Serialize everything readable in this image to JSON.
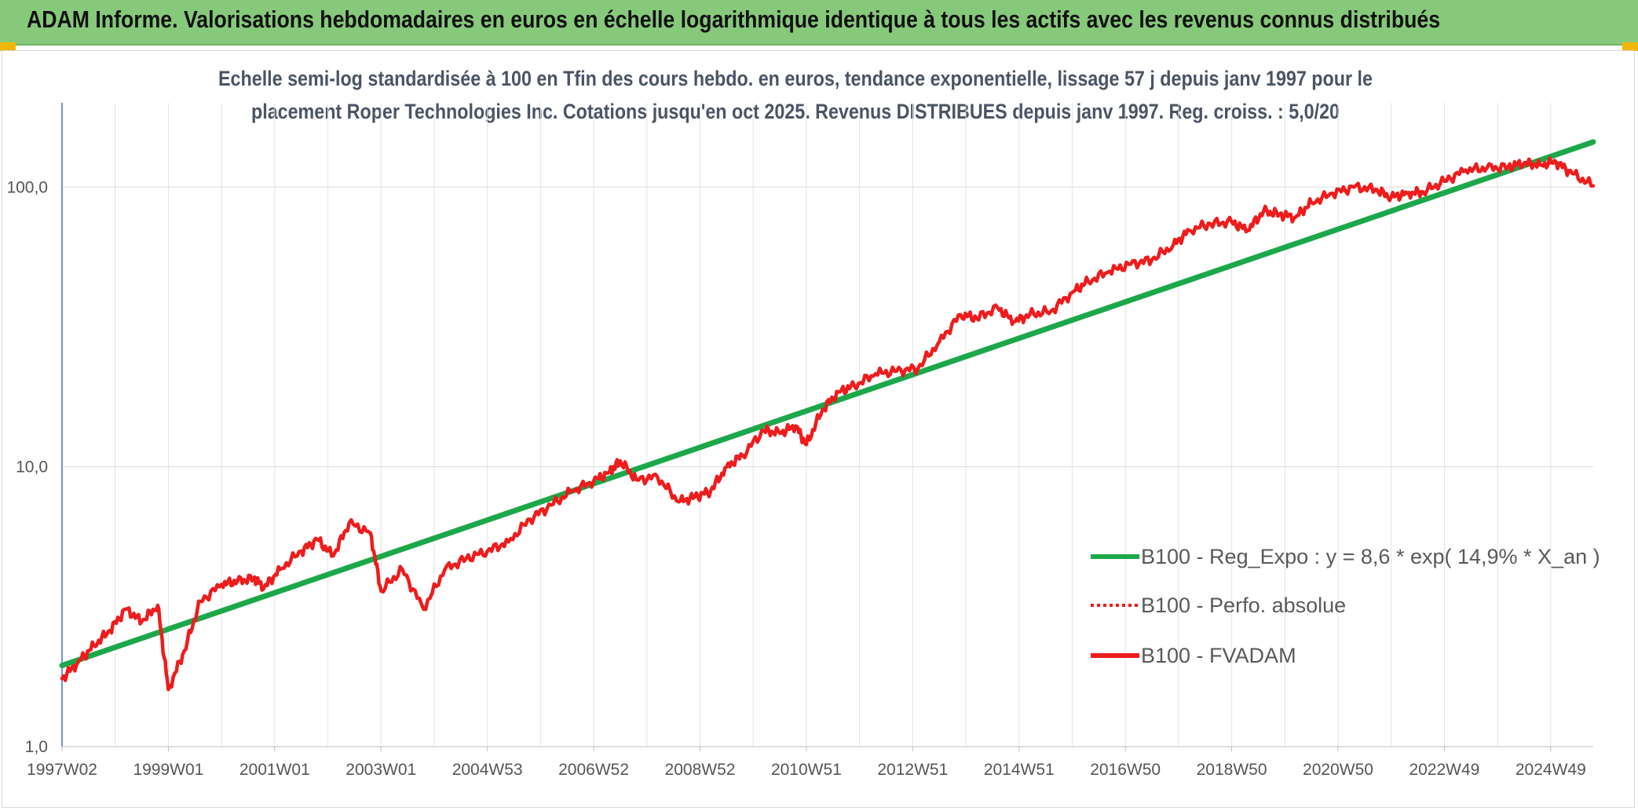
{
  "header": {
    "title": "ADAM Informe. Valorisations hebdomadaires en euros en échelle logarithmique identique à tous les actifs avec les revenus connus distribués"
  },
  "colors": {
    "banner": "#86c97a",
    "accent_tab": "#f2b705",
    "trend": "#1ca84a",
    "series": "#ee1c1c"
  },
  "chart_data": {
    "type": "line",
    "title_lines": [
      "Echelle semi-log standardisée à 100 en Tfin des cours hebdo. en euros, tendance exponentielle, lissage 57 j depuis janv 1997 pour le",
      "placement Roper Technologies Inc. Cotations jusqu'en oct 2025. Revenus DISTRIBUES depuis janv 1997. Reg. croiss. : 5,0/20"
    ],
    "y_scale": "log",
    "ylim": [
      1,
      200
    ],
    "y_tick_values": [
      1,
      10,
      100
    ],
    "y_tick_labels": [
      "1,0",
      "10,0",
      "100,0"
    ],
    "xlim": [
      1997.0,
      2025.8
    ],
    "x_tick_values": [
      1997.0,
      1999.0,
      2001.0,
      2003.0,
      2005.0,
      2007.0,
      2009.0,
      2011.0,
      2013.0,
      2015.0,
      2017.0,
      2019.0,
      2021.0,
      2023.0,
      2025.0
    ],
    "x_tick_labels": [
      "1997W02",
      "1999W01",
      "2001W01",
      "2003W01",
      "2004W53",
      "2006W52",
      "2008W52",
      "2010W51",
      "2012W51",
      "2014W51",
      "2016W50",
      "2018W50",
      "2020W50",
      "2022W49",
      "2024W49"
    ],
    "legend": [
      {
        "label": "B100 - Reg_Expo : y = 8,6 * exp( 14,9% *  X_an )",
        "style": "solid",
        "color": "#1ca84a"
      },
      {
        "label": "B100 - Perfo. absolue",
        "style": "dotted",
        "color": "#ee1c1c"
      },
      {
        "label": "B100 - FVADAM",
        "style": "solid",
        "color": "#ee1c1c"
      }
    ],
    "series": [
      {
        "name": "B100 - Reg_Expo",
        "x": [
          1997.0,
          2025.8
        ],
        "y": [
          1.95,
          145
        ]
      },
      {
        "name": "B100 - FVADAM",
        "x": [
          1997.0,
          1997.3,
          1997.6,
          1997.9,
          1998.2,
          1998.5,
          1998.8,
          1999.0,
          1999.3,
          1999.6,
          2000.0,
          2000.3,
          2000.6,
          2000.8,
          2001.1,
          2001.5,
          2001.8,
          2002.1,
          2002.4,
          2002.8,
          2003.0,
          2003.4,
          2003.8,
          2004.2,
          2004.6,
          2005.0,
          2005.4,
          2005.8,
          2006.2,
          2006.6,
          2007.0,
          2007.3,
          2007.5,
          2007.8,
          2008.2,
          2008.6,
          2008.9,
          2009.2,
          2009.5,
          2009.8,
          2010.2,
          2010.5,
          2010.8,
          2011.0,
          2011.3,
          2011.6,
          2011.9,
          2012.3,
          2012.7,
          2013.1,
          2013.5,
          2013.9,
          2014.2,
          2014.6,
          2014.9,
          2015.2,
          2015.6,
          2016.0,
          2016.3,
          2016.7,
          2017.1,
          2017.5,
          2017.9,
          2018.2,
          2018.6,
          2019.0,
          2019.3,
          2019.6,
          2019.9,
          2020.2,
          2020.5,
          2020.9,
          2021.3,
          2021.7,
          2022.0,
          2022.3,
          2022.6,
          2023.0,
          2023.4,
          2023.8,
          2024.2,
          2024.5,
          2024.8,
          2025.1,
          2025.4,
          2025.8
        ],
        "y": [
          1.75,
          2.0,
          2.3,
          2.6,
          3.1,
          2.8,
          3.2,
          1.6,
          2.2,
          3.3,
          3.8,
          3.9,
          4.0,
          3.7,
          4.3,
          5.0,
          5.5,
          4.8,
          6.3,
          5.8,
          3.6,
          4.3,
          3.1,
          4.3,
          4.7,
          5.0,
          5.4,
          6.5,
          7.3,
          8.2,
          8.9,
          9.6,
          10.5,
          9.0,
          9.2,
          7.5,
          7.8,
          8.2,
          10.0,
          11.0,
          13.5,
          13.2,
          14.0,
          12.0,
          16.0,
          18.5,
          19.5,
          21.5,
          22.0,
          22.5,
          28.0,
          35.0,
          34.0,
          37.0,
          33.0,
          35.0,
          36.0,
          42.0,
          46.0,
          50.0,
          53.0,
          55.0,
          62.0,
          70.0,
          74.0,
          75.0,
          70.0,
          82.0,
          80.0,
          78.0,
          88.0,
          95.0,
          100.0,
          98.0,
          92.0,
          95.0,
          96.0,
          105.0,
          115.0,
          117.0,
          118.0,
          122.0,
          120.0,
          123.0,
          112.0,
          101.0
        ]
      }
    ]
  }
}
